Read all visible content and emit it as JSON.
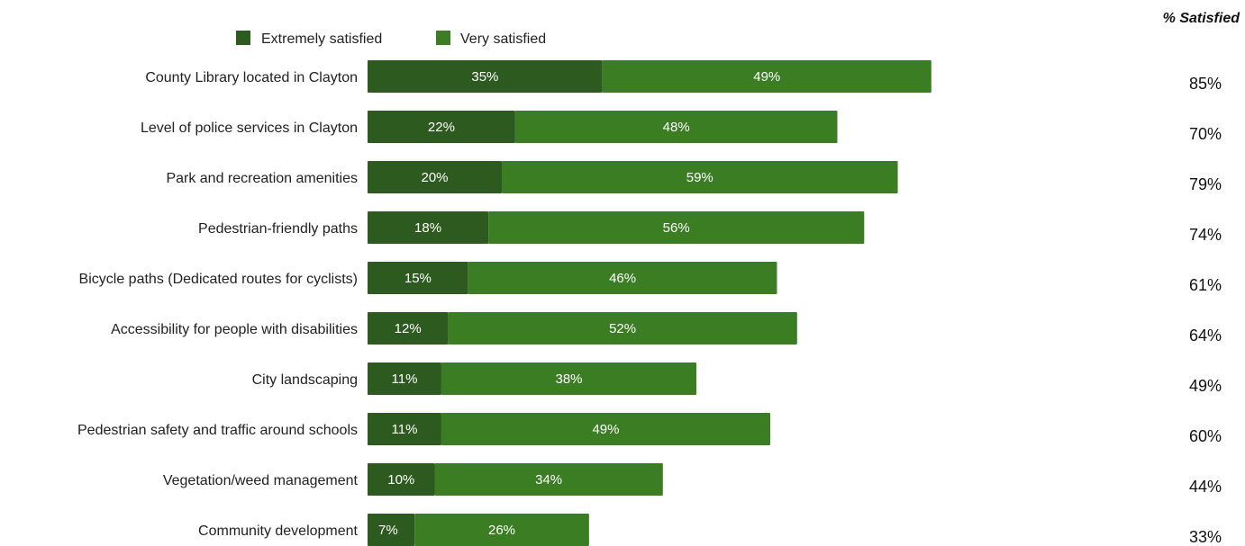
{
  "chart_data": {
    "type": "bar",
    "orientation": "horizontal",
    "stacked": true,
    "categories": [
      "County Library located in Clayton",
      "Level of police services in Clayton",
      "Park and recreation amenities",
      "Pedestrian-friendly paths",
      "Bicycle paths (Dedicated routes for cyclists)",
      "Accessibility for people with disabilities",
      "City landscaping",
      "Pedestrian safety and traffic around schools",
      "Vegetation/weed management",
      "Community development"
    ],
    "series": [
      {
        "name": "Extremely satisfied",
        "color": "#2d5a1f",
        "values": [
          35,
          22,
          20,
          18,
          15,
          12,
          11,
          11,
          10,
          7
        ],
        "labels": [
          "35%",
          "22%",
          "20%",
          "18%",
          "15%",
          "12%",
          "11%",
          "11%",
          "10%",
          "7%"
        ]
      },
      {
        "name": "Very satisfied",
        "color": "#3a7d22",
        "values": [
          49,
          48,
          59,
          56,
          46,
          52,
          38,
          49,
          34,
          26
        ],
        "labels": [
          "49%",
          "48%",
          "59%",
          "56%",
          "46%",
          "52%",
          "38%",
          "49%",
          "34%",
          "26%"
        ]
      }
    ],
    "legend_position": "top",
    "grid": false,
    "side_column": {
      "header": "% Satisfied",
      "values": [
        "85%",
        "70%",
        "79%",
        "74%",
        "61%",
        "64%",
        "49%",
        "60%",
        "44%",
        "33%"
      ]
    }
  }
}
